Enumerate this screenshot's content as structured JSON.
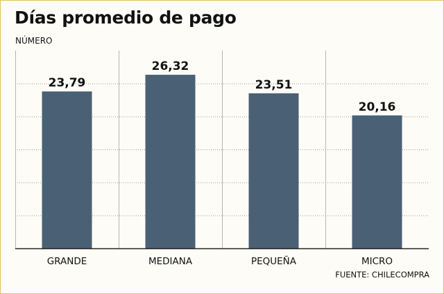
{
  "chart_data": {
    "type": "bar",
    "title": "Días promedio de pago",
    "subtitle": "NÚMERO",
    "categories": [
      "GRANDE",
      "MEDIANA",
      "PEQUEÑA",
      "MICRO"
    ],
    "values": [
      23.79,
      26.32,
      23.51,
      20.16
    ],
    "value_labels": [
      "23,79",
      "26,32",
      "23,51",
      "20,16"
    ],
    "ylim": [
      0,
      30
    ],
    "grid": true,
    "bar_color": "#4a6075",
    "source": "FUENTE: CHILECOMPRA"
  }
}
